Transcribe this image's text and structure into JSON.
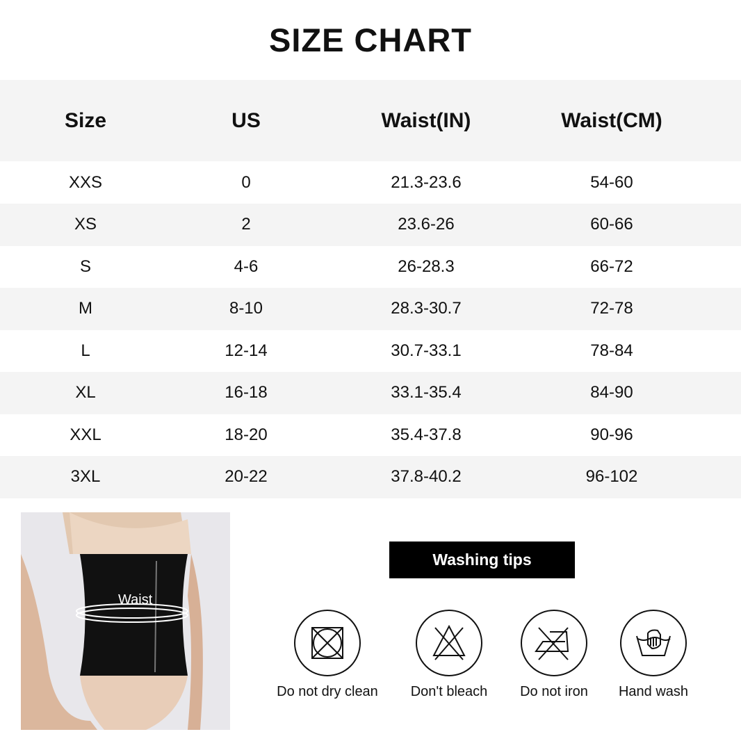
{
  "title": "SIZE CHART",
  "table": {
    "headers": [
      "Size",
      "US",
      "Waist(IN)",
      "Waist(CM)"
    ],
    "rows": [
      [
        "XXS",
        "0",
        "21.3-23.6",
        "54-60"
      ],
      [
        "XS",
        "2",
        "23.6-26",
        "60-66"
      ],
      [
        "S",
        "4-6",
        "26-28.3",
        "66-72"
      ],
      [
        "M",
        "8-10",
        "28.3-30.7",
        "72-78"
      ],
      [
        "L",
        "12-14",
        "30.7-33.1",
        "78-84"
      ],
      [
        "XL",
        "16-18",
        "33.1-35.4",
        "84-90"
      ],
      [
        "XXL",
        "18-20",
        "35.4-37.8",
        "90-96"
      ],
      [
        "3XL",
        "20-22",
        "37.8-40.2",
        "96-102"
      ]
    ]
  },
  "photo": {
    "waist_label": "Waist"
  },
  "washing": {
    "title": "Washing tips",
    "items": [
      {
        "icon": "no-dry-clean-icon",
        "label": "Do not dry clean"
      },
      {
        "icon": "no-bleach-icon",
        "label": "Don't bleach"
      },
      {
        "icon": "no-iron-icon",
        "label": "Do not iron"
      },
      {
        "icon": "hand-wash-icon",
        "label": "Hand wash"
      }
    ]
  }
}
